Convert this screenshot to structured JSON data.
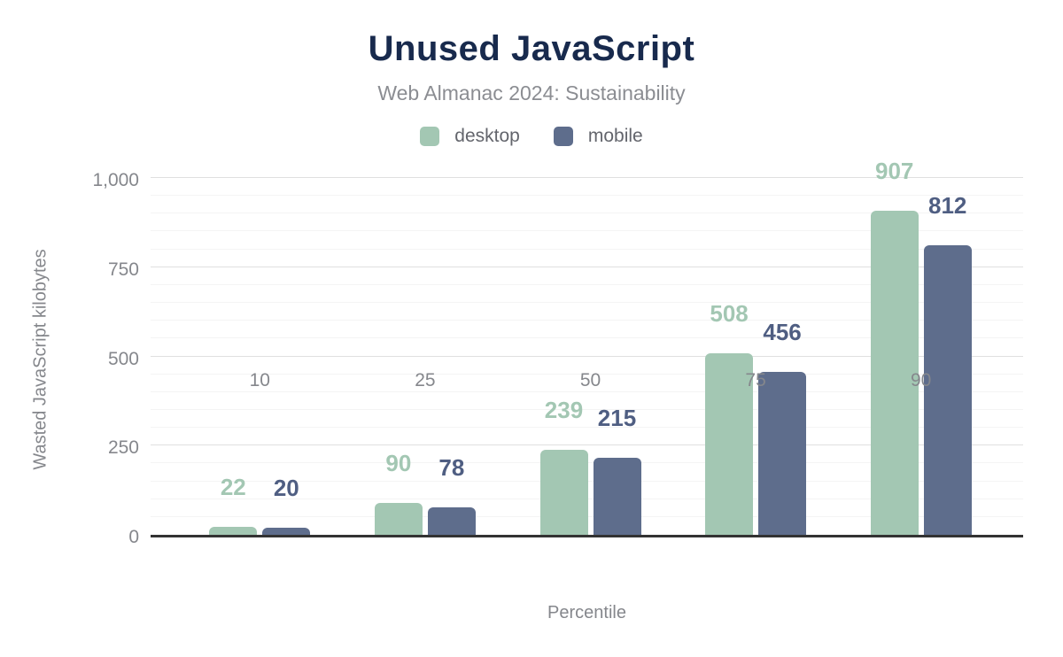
{
  "header": {
    "title": "Unused JavaScript",
    "subtitle": "Web Almanac 2024: Sustainability"
  },
  "legend": {
    "items": [
      {
        "label": "desktop",
        "color": "#a3c7b3"
      },
      {
        "label": "mobile",
        "color": "#5e6d8c"
      }
    ]
  },
  "axes": {
    "xlabel": "Percentile",
    "ylabel": "Wasted JavaScript kilobytes",
    "ytick_labels": [
      "0",
      "250",
      "500",
      "750",
      "1,000"
    ]
  },
  "chart_data": {
    "type": "bar",
    "title": "Unused JavaScript",
    "subtitle": "Web Almanac 2024: Sustainability",
    "categories": [
      "10",
      "25",
      "50",
      "75",
      "90"
    ],
    "series": [
      {
        "name": "desktop",
        "values": [
          22,
          90,
          239,
          508,
          907
        ],
        "color": "#a3c7b3",
        "label_color": "#a3c7b3"
      },
      {
        "name": "mobile",
        "values": [
          20,
          78,
          215,
          456,
          812
        ],
        "color": "#5e6d8c",
        "label_color": "#4f5e82"
      }
    ],
    "xlabel": "Percentile",
    "ylabel": "Wasted JavaScript kilobytes",
    "ylim": [
      0,
      1000
    ],
    "yticks": [
      0,
      250,
      500,
      750,
      1000
    ],
    "minor_grid_step": 50,
    "grid": "horizontal",
    "legend_position": "top",
    "data_labels": "above-bars"
  },
  "colors": {
    "title": "#182a4d",
    "subtitle": "#8b8d92",
    "axis_text": "#85878c",
    "legend_text": "#63656c",
    "major_gridline": "#e0e0e0",
    "minor_gridline": "#f4f4f4",
    "axis_line": "#333333",
    "background": "#ffffff"
  }
}
